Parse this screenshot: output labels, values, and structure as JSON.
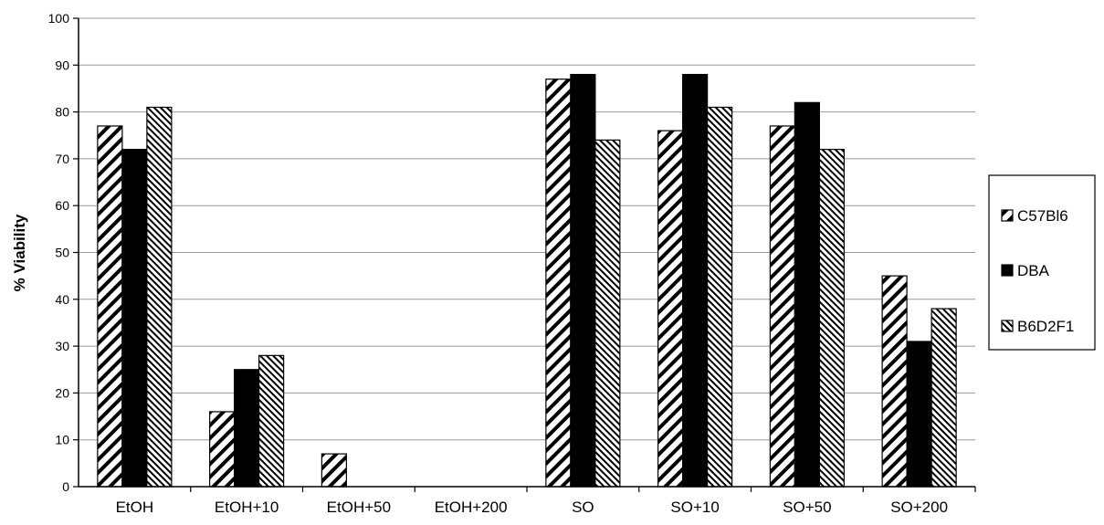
{
  "chart_data": {
    "type": "bar",
    "title": "",
    "xlabel": "",
    "ylabel": "% Viability",
    "ylim": [
      0,
      100
    ],
    "yticks": [
      0,
      10,
      20,
      30,
      40,
      50,
      60,
      70,
      80,
      90,
      100
    ],
    "grid": true,
    "legend_position": "right",
    "categories": [
      "EtOH",
      "EtOH+10",
      "EtOH+50",
      "EtOH+200",
      "SO",
      "SO+10",
      "SO+50",
      "SO+200"
    ],
    "series": [
      {
        "name": "C57Bl6",
        "pattern": "wide-diagonal-hatch",
        "values": [
          77,
          16,
          7,
          0,
          87,
          76,
          77,
          45
        ]
      },
      {
        "name": "DBA",
        "pattern": "solid-black",
        "values": [
          72,
          25,
          0,
          0,
          88,
          88,
          82,
          31
        ]
      },
      {
        "name": "B6D2F1",
        "pattern": "narrow-diagonal-hatch",
        "values": [
          81,
          28,
          0,
          0,
          74,
          81,
          72,
          38
        ]
      }
    ],
    "colors": {
      "bar_fill": "#000000",
      "bar_background": "#ffffff",
      "gridline": "#999999",
      "axis": "#000000"
    }
  }
}
